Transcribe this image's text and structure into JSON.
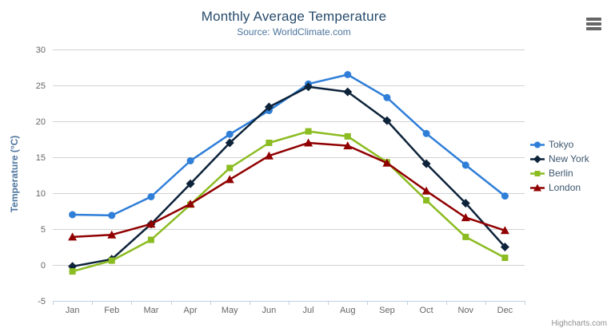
{
  "title": "Monthly Average Temperature",
  "subtitle": "Source: WorldClimate.com",
  "credit": "Highcharts.com",
  "menu_icon": "hamburger-icon",
  "colors": {
    "title": "#274b6d",
    "subtitle": "#4d759e",
    "axis_title": "#4d759e",
    "axis_labels": "#666666",
    "grid": "#d2d2d2",
    "axis_line": "#c0d0e0",
    "legend_text": "#3e576f"
  },
  "chart_data": {
    "type": "line",
    "title": "Monthly Average Temperature",
    "subtitle": "Source: WorldClimate.com",
    "xlabel": "",
    "ylabel": "Temperature (°C)",
    "ylim": [
      -5,
      30
    ],
    "yticks": [
      -5,
      0,
      5,
      10,
      15,
      20,
      25,
      30
    ],
    "grid": true,
    "legend_position": "right",
    "categories": [
      "Jan",
      "Feb",
      "Mar",
      "Apr",
      "May",
      "Jun",
      "Jul",
      "Aug",
      "Sep",
      "Oct",
      "Nov",
      "Dec"
    ],
    "series": [
      {
        "name": "Tokyo",
        "color": "#2f7ed8",
        "marker": "circle",
        "values": [
          7.0,
          6.9,
          9.5,
          14.5,
          18.2,
          21.5,
          25.2,
          26.5,
          23.3,
          18.3,
          13.9,
          9.6
        ]
      },
      {
        "name": "New York",
        "color": "#0d233a",
        "marker": "diamond",
        "values": [
          -0.2,
          0.8,
          5.7,
          11.3,
          17.0,
          22.0,
          24.8,
          24.1,
          20.1,
          14.1,
          8.6,
          2.5
        ]
      },
      {
        "name": "Berlin",
        "color": "#8bbc21",
        "marker": "square",
        "values": [
          -0.9,
          0.6,
          3.5,
          8.4,
          13.5,
          17.0,
          18.6,
          17.9,
          14.3,
          9.0,
          3.9,
          1.0
        ]
      },
      {
        "name": "London",
        "color": "#910000",
        "marker": "triangle",
        "values": [
          3.9,
          4.2,
          5.7,
          8.5,
          11.9,
          15.2,
          17.0,
          16.6,
          14.2,
          10.3,
          6.6,
          4.8
        ]
      }
    ]
  }
}
